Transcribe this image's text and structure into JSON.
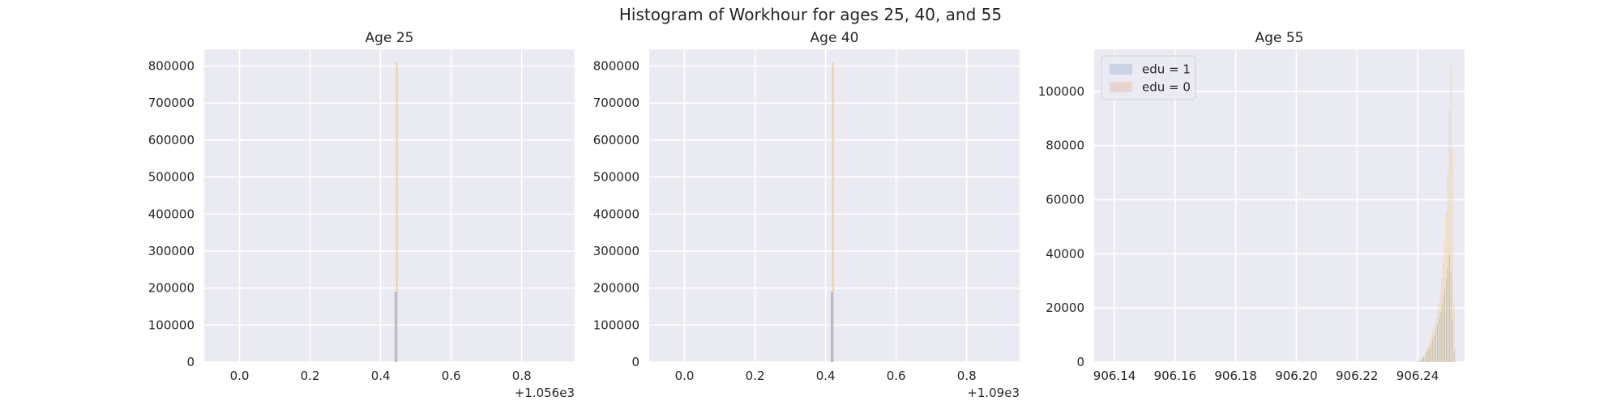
{
  "figure": {
    "title": "Histogram of Workhour for ages 25, 40, and 55"
  },
  "colors": {
    "edu1": "#4c72b0",
    "edu0": "#dd8452",
    "edu0_light": "#f5c98c",
    "overlap": "#a3a58b",
    "axes_bg": "#eaeaf2",
    "grid": "#ffffff",
    "text": "#262626"
  },
  "chart_data": [
    {
      "type": "histogram",
      "title": "Age 25",
      "xlabel": "",
      "ylabel": "",
      "xlim": [
        -0.1,
        0.95
      ],
      "ylim": [
        0,
        845000
      ],
      "x_offset_label": "+1.056e3",
      "x_offset": 1056,
      "xticks": [
        0.0,
        0.2,
        0.4,
        0.6,
        0.8
      ],
      "xtick_labels": [
        "0.0",
        "0.2",
        "0.4",
        "0.6",
        "0.8"
      ],
      "yticks": [
        0,
        100000,
        200000,
        300000,
        400000,
        500000,
        600000,
        700000,
        800000
      ],
      "ytick_labels": [
        "0",
        "100000",
        "200000",
        "300000",
        "400000",
        "500000",
        "600000",
        "700000",
        "800000"
      ],
      "grid": true,
      "series": [
        {
          "name": "edu = 1",
          "bars": [
            {
              "x": 0.443,
              "y": 190000
            }
          ]
        },
        {
          "name": "edu = 0",
          "bars": [
            {
              "x": 0.446,
              "y": 810000
            }
          ]
        }
      ]
    },
    {
      "type": "histogram",
      "title": "Age 40",
      "xlabel": "",
      "ylabel": "",
      "xlim": [
        -0.1,
        0.95
      ],
      "ylim": [
        0,
        845000
      ],
      "x_offset_label": "+1.09e3",
      "x_offset": 1090,
      "xticks": [
        0.0,
        0.2,
        0.4,
        0.6,
        0.8
      ],
      "xtick_labels": [
        "0.0",
        "0.2",
        "0.4",
        "0.6",
        "0.8"
      ],
      "yticks": [
        0,
        100000,
        200000,
        300000,
        400000,
        500000,
        600000,
        700000,
        800000
      ],
      "ytick_labels": [
        "0",
        "100000",
        "200000",
        "300000",
        "400000",
        "500000",
        "600000",
        "700000",
        "800000"
      ],
      "grid": true,
      "series": [
        {
          "name": "edu = 1",
          "bars": [
            {
              "x": 0.418,
              "y": 190000
            }
          ]
        },
        {
          "name": "edu = 0",
          "bars": [
            {
              "x": 0.421,
              "y": 810000
            }
          ]
        }
      ]
    },
    {
      "type": "histogram",
      "title": "Age 55",
      "xlabel": "",
      "ylabel": "",
      "xlim": [
        906.1333,
        906.2555
      ],
      "ylim": [
        0,
        115500
      ],
      "xticks": [
        906.14,
        906.16,
        906.18,
        906.2,
        906.22,
        906.24
      ],
      "xtick_labels": [
        "906.14",
        "906.16",
        "906.18",
        "906.20",
        "906.22",
        "906.24"
      ],
      "yticks": [
        0,
        20000,
        40000,
        60000,
        80000,
        100000
      ],
      "ytick_labels": [
        "0",
        "20000",
        "40000",
        "60000",
        "80000",
        "100000"
      ],
      "grid": true,
      "legend": {
        "placement": "upper-left",
        "entries": [
          "edu = 1",
          "edu = 0"
        ]
      },
      "bin_width": 0.00025,
      "series": [
        {
          "name": "edu = 1",
          "bars": [
            {
              "x": 906.2395,
              "y": 150
            },
            {
              "x": 906.24,
              "y": 300
            },
            {
              "x": 906.2405,
              "y": 500
            },
            {
              "x": 906.241,
              "y": 800
            },
            {
              "x": 906.2415,
              "y": 1200
            },
            {
              "x": 906.242,
              "y": 1800
            },
            {
              "x": 906.2425,
              "y": 2500
            },
            {
              "x": 906.243,
              "y": 3500
            },
            {
              "x": 906.2435,
              "y": 4500
            },
            {
              "x": 906.244,
              "y": 5500
            },
            {
              "x": 906.2445,
              "y": 7000
            },
            {
              "x": 906.245,
              "y": 8500
            },
            {
              "x": 906.2455,
              "y": 10000
            },
            {
              "x": 906.246,
              "y": 12000
            },
            {
              "x": 906.2465,
              "y": 14000
            },
            {
              "x": 906.247,
              "y": 16000
            },
            {
              "x": 906.2475,
              "y": 18500
            },
            {
              "x": 906.248,
              "y": 21000
            },
            {
              "x": 906.2485,
              "y": 24000
            },
            {
              "x": 906.249,
              "y": 27000
            },
            {
              "x": 906.2495,
              "y": 31000
            },
            {
              "x": 906.25,
              "y": 35000
            },
            {
              "x": 906.2505,
              "y": 40000
            },
            {
              "x": 906.251,
              "y": 33000
            },
            {
              "x": 906.2515,
              "y": 16000
            },
            {
              "x": 906.252,
              "y": 4000
            }
          ]
        },
        {
          "name": "edu = 0",
          "bars": [
            {
              "x": 906.2395,
              "y": 200
            },
            {
              "x": 906.24,
              "y": 400
            },
            {
              "x": 906.2405,
              "y": 700
            },
            {
              "x": 906.241,
              "y": 1100
            },
            {
              "x": 906.2415,
              "y": 1700
            },
            {
              "x": 906.242,
              "y": 2500
            },
            {
              "x": 906.2425,
              "y": 3500
            },
            {
              "x": 906.243,
              "y": 4800
            },
            {
              "x": 906.2435,
              "y": 6200
            },
            {
              "x": 906.244,
              "y": 7800
            },
            {
              "x": 906.2445,
              "y": 9500
            },
            {
              "x": 906.245,
              "y": 11500
            },
            {
              "x": 906.2455,
              "y": 13500
            },
            {
              "x": 906.246,
              "y": 16000
            },
            {
              "x": 906.2465,
              "y": 19000
            },
            {
              "x": 906.247,
              "y": 22000
            },
            {
              "x": 906.2475,
              "y": 26000
            },
            {
              "x": 906.248,
              "y": 31000
            },
            {
              "x": 906.2485,
              "y": 37000
            },
            {
              "x": 906.249,
              "y": 45000
            },
            {
              "x": 906.2495,
              "y": 55000
            },
            {
              "x": 906.25,
              "y": 70000
            },
            {
              "x": 906.2505,
              "y": 93000
            },
            {
              "x": 906.251,
              "y": 110000
            },
            {
              "x": 906.2515,
              "y": 78000
            },
            {
              "x": 906.252,
              "y": 22000
            },
            {
              "x": 906.2525,
              "y": 5000
            }
          ]
        }
      ]
    }
  ]
}
